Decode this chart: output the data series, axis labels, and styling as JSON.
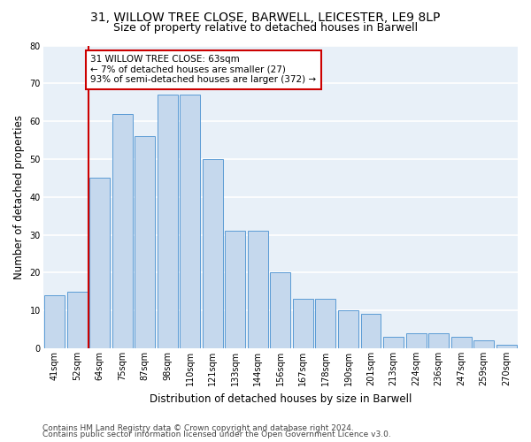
{
  "title1": "31, WILLOW TREE CLOSE, BARWELL, LEICESTER, LE9 8LP",
  "title2": "Size of property relative to detached houses in Barwell",
  "xlabel": "Distribution of detached houses by size in Barwell",
  "ylabel": "Number of detached properties",
  "categories": [
    "41sqm",
    "52sqm",
    "64sqm",
    "75sqm",
    "87sqm",
    "98sqm",
    "110sqm",
    "121sqm",
    "133sqm",
    "144sqm",
    "156sqm",
    "167sqm",
    "178sqm",
    "190sqm",
    "201sqm",
    "213sqm",
    "224sqm",
    "236sqm",
    "247sqm",
    "259sqm",
    "270sqm"
  ],
  "values": [
    14,
    15,
    45,
    62,
    56,
    67,
    67,
    50,
    31,
    31,
    20,
    13,
    13,
    10,
    9,
    3,
    4,
    4,
    3,
    2,
    1
  ],
  "bar_color": "#c5d8ed",
  "bar_edge_color": "#5b9bd5",
  "subject_line_color": "#cc0000",
  "annotation_text": "31 WILLOW TREE CLOSE: 63sqm\n← 7% of detached houses are smaller (27)\n93% of semi-detached houses are larger (372) →",
  "annotation_box_color": "#cc0000",
  "ylim": [
    0,
    80
  ],
  "yticks": [
    0,
    10,
    20,
    30,
    40,
    50,
    60,
    70,
    80
  ],
  "footer1": "Contains HM Land Registry data © Crown copyright and database right 2024.",
  "footer2": "Contains public sector information licensed under the Open Government Licence v3.0.",
  "bg_color": "#e8f0f8",
  "grid_color": "#ffffff",
  "title_fontsize": 10,
  "subtitle_fontsize": 9,
  "axis_label_fontsize": 8.5,
  "tick_fontsize": 7,
  "footer_fontsize": 6.5,
  "annotation_fontsize": 7.5
}
